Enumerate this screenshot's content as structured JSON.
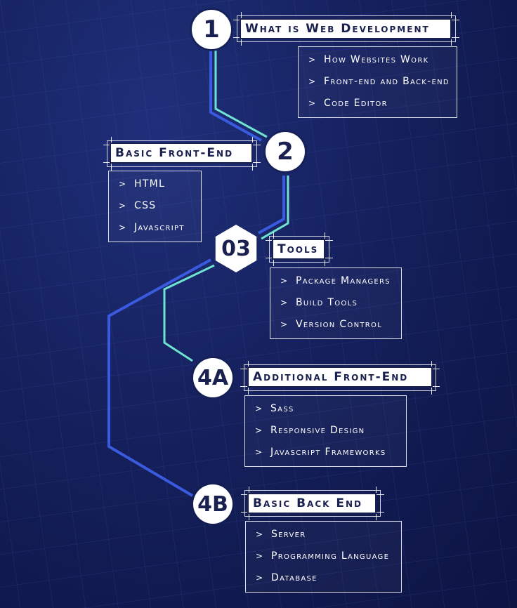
{
  "steps": [
    {
      "id": "1",
      "title": "What is Web Development",
      "items": [
        "How Websites Work",
        "Front-end and Back-end",
        "Code Editor"
      ]
    },
    {
      "id": "2",
      "title": "Basic Front-End",
      "items": [
        "HTML",
        "CSS",
        "Javascript"
      ]
    },
    {
      "id": "03",
      "title": "Tools",
      "items": [
        "Package Managers",
        "Build Tools",
        "Version Control"
      ]
    },
    {
      "id": "4A",
      "title": "Additional Front-End",
      "items": [
        "Sass",
        "Responsive Design",
        "Javascript Frameworks"
      ]
    },
    {
      "id": "4B",
      "title": "Basic Back End",
      "items": [
        "Server",
        "Programming Language",
        "Database"
      ]
    }
  ],
  "bullet": ">",
  "colors": {
    "line_blue": "#3a5be0",
    "line_teal": "#6fe3d0",
    "bg": "#15205c",
    "text": "#ffffff",
    "label": "#1a2150"
  }
}
